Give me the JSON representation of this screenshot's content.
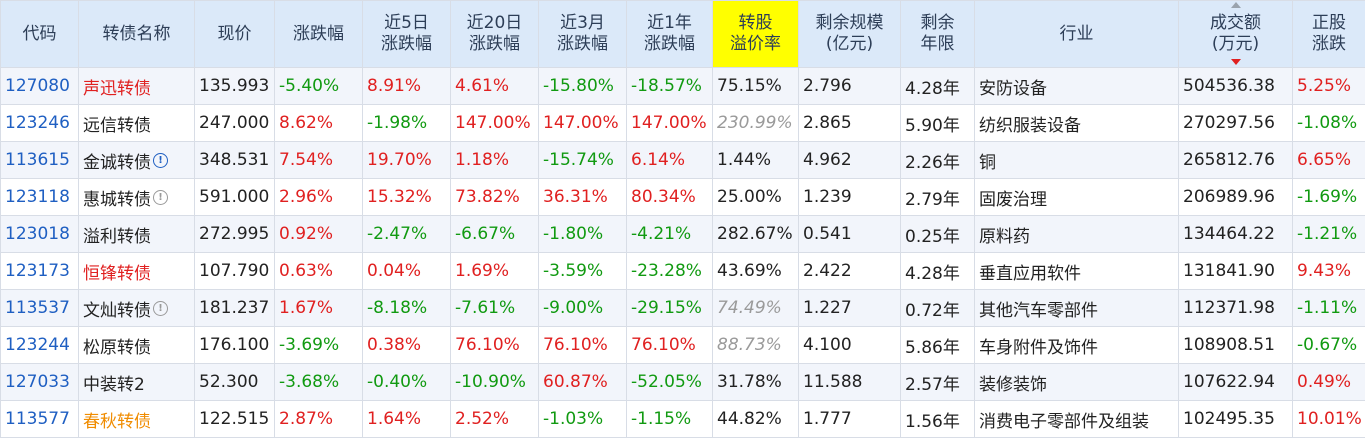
{
  "headers": [
    {
      "line1": "代码",
      "line2": ""
    },
    {
      "line1": "转债名称",
      "line2": ""
    },
    {
      "line1": "现价",
      "line2": ""
    },
    {
      "line1": "涨跌幅",
      "line2": ""
    },
    {
      "line1": "近5日",
      "line2": "涨跌幅"
    },
    {
      "line1": "近20日",
      "line2": "涨跌幅"
    },
    {
      "line1": "近3月",
      "line2": "涨跌幅"
    },
    {
      "line1": "近1年",
      "line2": "涨跌幅"
    },
    {
      "line1": "转股",
      "line2": "溢价率"
    },
    {
      "line1": "剩余规模",
      "line2": "(亿元)"
    },
    {
      "line1": "剩余",
      "line2": "年限"
    },
    {
      "line1": "行业",
      "line2": ""
    },
    {
      "line1": "成交额",
      "line2": "(万元)"
    },
    {
      "line1": "正股",
      "line2": "涨跌"
    }
  ],
  "highlight_color": "#ffff00",
  "rows": [
    {
      "code": "127080",
      "name": "声迅转债",
      "name_color": "red",
      "icon": "",
      "price": "135.993",
      "chg": "-5.40%",
      "chg5": "8.91%",
      "chg20": "4.61%",
      "chg3m": "-15.80%",
      "chg1y": "-18.57%",
      "premium": "75.15%",
      "premium_style": "",
      "scale": "2.796",
      "years": "4.28年",
      "industry": "安防设备",
      "volume": "504536.38",
      "stock_chg": "5.25%"
    },
    {
      "code": "123246",
      "name": "远信转债",
      "name_color": "",
      "icon": "",
      "price": "247.000",
      "chg": "8.62%",
      "chg5": "-1.98%",
      "chg20": "147.00%",
      "chg3m": "147.00%",
      "chg1y": "147.00%",
      "premium": "230.99%",
      "premium_style": "grey-italic",
      "scale": "2.865",
      "years": "5.90年",
      "industry": "纺织服装设备",
      "volume": "270297.56",
      "stock_chg": "-1.08%"
    },
    {
      "code": "113615",
      "name": "金诚转债",
      "name_color": "",
      "icon": "info-blue",
      "price": "348.531",
      "chg": "7.54%",
      "chg5": "19.70%",
      "chg20": "1.18%",
      "chg3m": "-15.74%",
      "chg1y": "6.14%",
      "premium": "1.44%",
      "premium_style": "",
      "scale": "4.962",
      "years": "2.26年",
      "industry": "铜",
      "volume": "265812.76",
      "stock_chg": "6.65%"
    },
    {
      "code": "123118",
      "name": "惠城转债",
      "name_color": "",
      "icon": "info-grey",
      "price": "591.000",
      "chg": "2.96%",
      "chg5": "15.32%",
      "chg20": "73.82%",
      "chg3m": "36.31%",
      "chg1y": "80.34%",
      "premium": "25.00%",
      "premium_style": "",
      "scale": "1.239",
      "years": "2.79年",
      "industry": "固废治理",
      "volume": "206989.96",
      "stock_chg": "-1.69%"
    },
    {
      "code": "123018",
      "name": "溢利转债",
      "name_color": "",
      "icon": "",
      "price": "272.995",
      "chg": "0.92%",
      "chg5": "-2.47%",
      "chg20": "-6.67%",
      "chg3m": "-1.80%",
      "chg1y": "-4.21%",
      "premium": "282.67%",
      "premium_style": "",
      "scale": "0.541",
      "years": "0.25年",
      "industry": "原料药",
      "volume": "134464.22",
      "stock_chg": "-1.21%"
    },
    {
      "code": "123173",
      "name": "恒锋转债",
      "name_color": "red",
      "icon": "",
      "price": "107.790",
      "chg": "0.63%",
      "chg5": "0.04%",
      "chg20": "1.69%",
      "chg3m": "-3.59%",
      "chg1y": "-23.28%",
      "premium": "43.69%",
      "premium_style": "",
      "scale": "2.422",
      "years": "4.28年",
      "industry": "垂直应用软件",
      "volume": "131841.90",
      "stock_chg": "9.43%"
    },
    {
      "code": "113537",
      "name": "文灿转债",
      "name_color": "",
      "icon": "info-grey",
      "price": "181.237",
      "chg": "1.67%",
      "chg5": "-8.18%",
      "chg20": "-7.61%",
      "chg3m": "-9.00%",
      "chg1y": "-29.15%",
      "premium": "74.49%",
      "premium_style": "grey-italic",
      "scale": "1.227",
      "years": "0.72年",
      "industry": "其他汽车零部件",
      "volume": "112371.98",
      "stock_chg": "-1.11%"
    },
    {
      "code": "123244",
      "name": "松原转债",
      "name_color": "",
      "icon": "",
      "price": "176.100",
      "chg": "-3.69%",
      "chg5": "0.38%",
      "chg20": "76.10%",
      "chg3m": "76.10%",
      "chg1y": "76.10%",
      "premium": "88.73%",
      "premium_style": "grey-italic",
      "scale": "4.100",
      "years": "5.86年",
      "industry": "车身附件及饰件",
      "volume": "108908.51",
      "stock_chg": "-0.67%"
    },
    {
      "code": "127033",
      "name": "中装转2",
      "name_color": "",
      "icon": "",
      "price": "52.300",
      "chg": "-3.68%",
      "chg5": "-0.40%",
      "chg20": "-10.90%",
      "chg3m": "60.87%",
      "chg1y": "-52.05%",
      "premium": "31.78%",
      "premium_style": "",
      "scale": "11.588",
      "years": "2.57年",
      "industry": "装修装饰",
      "volume": "107622.94",
      "stock_chg": "0.49%"
    },
    {
      "code": "113577",
      "name": "春秋转债",
      "name_color": "orange",
      "icon": "",
      "price": "122.515",
      "chg": "2.87%",
      "chg5": "1.64%",
      "chg20": "2.52%",
      "chg3m": "-1.03%",
      "chg1y": "-1.15%",
      "premium": "44.82%",
      "premium_style": "",
      "scale": "1.777",
      "years": "1.56年",
      "industry": "消费电子零部件及组装",
      "volume": "102495.35",
      "stock_chg": "10.01%"
    }
  ]
}
